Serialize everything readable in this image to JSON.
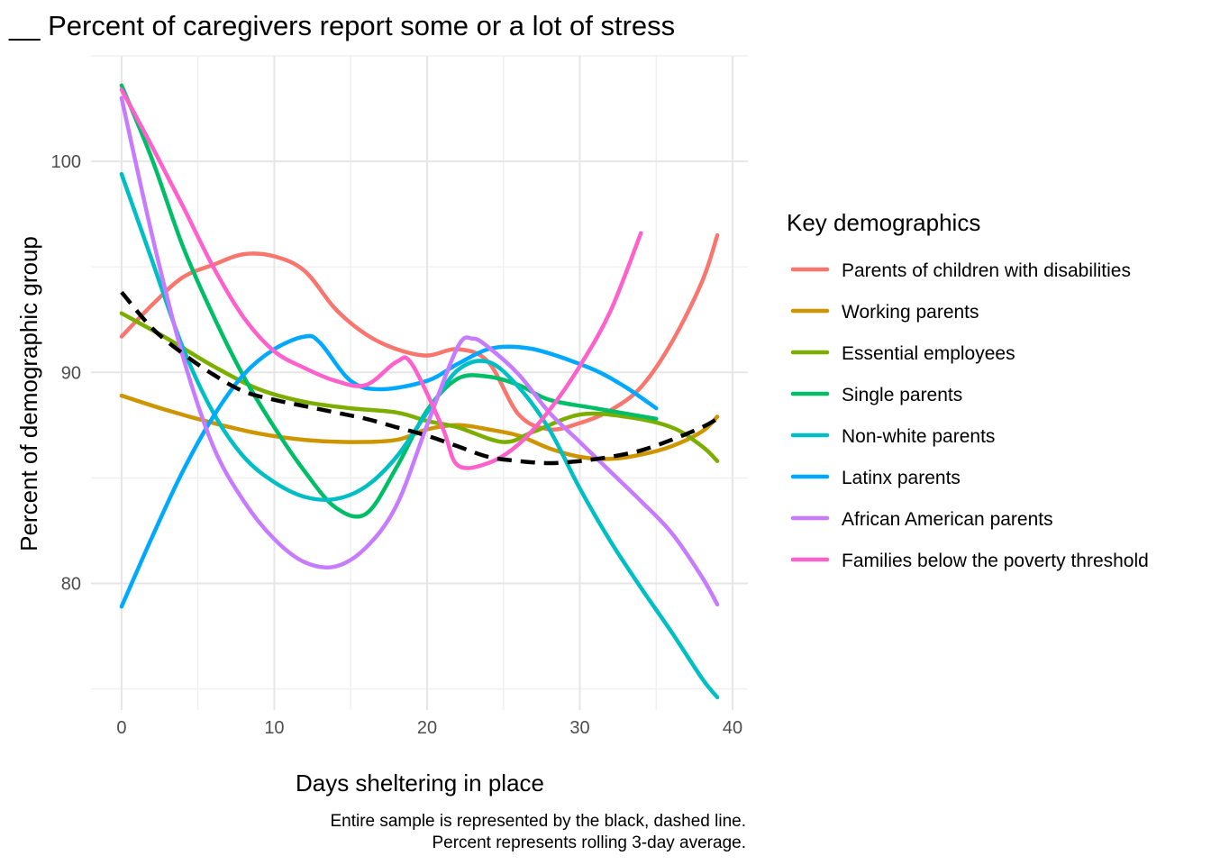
{
  "chart_data": {
    "type": "line",
    "title": "__ Percent of caregivers report some or a lot of stress",
    "xlabel": "Days sheltering in place",
    "ylabel": "Percent of demographic group",
    "xlim": [
      -2,
      41
    ],
    "ylim": [
      74,
      105
    ],
    "xticks": [
      0,
      10,
      20,
      30,
      40
    ],
    "yticks": [
      80,
      90,
      100
    ],
    "grid": true,
    "legend": {
      "title": "Key demographics",
      "placement": "right"
    },
    "caption": [
      "Entire sample is represented by the black, dashed line.",
      "Percent represents rolling 3-day average."
    ],
    "series": [
      {
        "name": "Parents of children with disabilities",
        "color": "#f8766d",
        "points": [
          [
            0,
            91.7
          ],
          [
            2,
            93.2
          ],
          [
            4,
            94.5
          ],
          [
            6,
            95.1
          ],
          [
            8,
            95.6
          ],
          [
            10,
            95.5
          ],
          [
            12,
            94.8
          ],
          [
            14,
            93.0
          ],
          [
            16,
            91.8
          ],
          [
            18,
            91.1
          ],
          [
            20,
            90.8
          ],
          [
            22,
            91.1
          ],
          [
            24,
            90.5
          ],
          [
            26,
            88.0
          ],
          [
            28,
            87.3
          ],
          [
            30,
            87.6
          ],
          [
            32,
            88.2
          ],
          [
            34,
            89.3
          ],
          [
            36,
            91.4
          ],
          [
            38,
            94.3
          ],
          [
            39,
            96.5
          ]
        ]
      },
      {
        "name": "Working parents",
        "color": "#cd9600",
        "points": [
          [
            0,
            88.9
          ],
          [
            3,
            88.2
          ],
          [
            6,
            87.6
          ],
          [
            9,
            87.1
          ],
          [
            12,
            86.8
          ],
          [
            15,
            86.7
          ],
          [
            18,
            86.8
          ],
          [
            20,
            87.3
          ],
          [
            22,
            87.5
          ],
          [
            24,
            87.3
          ],
          [
            26,
            87.0
          ],
          [
            28,
            86.4
          ],
          [
            30,
            86.0
          ],
          [
            32,
            85.9
          ],
          [
            34,
            86.1
          ],
          [
            36,
            86.5
          ],
          [
            38,
            87.2
          ],
          [
            39,
            87.9
          ]
        ]
      },
      {
        "name": "Essential employees",
        "color": "#7cae00",
        "points": [
          [
            0,
            92.8
          ],
          [
            3,
            91.6
          ],
          [
            6,
            90.3
          ],
          [
            9,
            89.2
          ],
          [
            12,
            88.6
          ],
          [
            15,
            88.3
          ],
          [
            18,
            88.1
          ],
          [
            20,
            87.7
          ],
          [
            22,
            87.4
          ],
          [
            25,
            86.7
          ],
          [
            27,
            87.2
          ],
          [
            30,
            88.0
          ],
          [
            33,
            87.9
          ],
          [
            36,
            87.4
          ],
          [
            38,
            86.5
          ],
          [
            39,
            85.8
          ]
        ]
      },
      {
        "name": "Single parents",
        "color": "#00be67",
        "points": [
          [
            0,
            103.6
          ],
          [
            2,
            100.1
          ],
          [
            4,
            96.0
          ],
          [
            6,
            92.7
          ],
          [
            8,
            89.8
          ],
          [
            10,
            87.4
          ],
          [
            12,
            85.3
          ],
          [
            14,
            83.6
          ],
          [
            16,
            83.3
          ],
          [
            18,
            85.5
          ],
          [
            20,
            88.2
          ],
          [
            22,
            89.7
          ],
          [
            24,
            89.8
          ],
          [
            26,
            89.4
          ],
          [
            28,
            88.7
          ],
          [
            31,
            88.3
          ],
          [
            35,
            87.8
          ]
        ]
      },
      {
        "name": "Non-white parents",
        "color": "#00bfc4",
        "points": [
          [
            0,
            99.4
          ],
          [
            2,
            95.3
          ],
          [
            4,
            91.2
          ],
          [
            6,
            88.1
          ],
          [
            8,
            86.0
          ],
          [
            10,
            84.8
          ],
          [
            12,
            84.1
          ],
          [
            14,
            84.0
          ],
          [
            16,
            84.6
          ],
          [
            18,
            86.0
          ],
          [
            20,
            88.1
          ],
          [
            22,
            90.1
          ],
          [
            24,
            90.5
          ],
          [
            26,
            89.3
          ],
          [
            28,
            87.3
          ],
          [
            30,
            84.5
          ],
          [
            32,
            82.0
          ],
          [
            34,
            79.8
          ],
          [
            36,
            77.7
          ],
          [
            38,
            75.5
          ],
          [
            39,
            74.6
          ]
        ]
      },
      {
        "name": "Latinx parents",
        "color": "#00a9ff",
        "points": [
          [
            0,
            78.9
          ],
          [
            2,
            82.2
          ],
          [
            4,
            85.3
          ],
          [
            6,
            87.9
          ],
          [
            8,
            89.9
          ],
          [
            10,
            91.1
          ],
          [
            12,
            91.7
          ],
          [
            13,
            91.4
          ],
          [
            15,
            89.6
          ],
          [
            17,
            89.2
          ],
          [
            20,
            89.6
          ],
          [
            22,
            90.4
          ],
          [
            24,
            91.1
          ],
          [
            26,
            91.2
          ],
          [
            28,
            90.9
          ],
          [
            31,
            90.1
          ],
          [
            33,
            89.3
          ],
          [
            35,
            88.3
          ]
        ]
      },
      {
        "name": "African American parents",
        "color": "#c77cff",
        "points": [
          [
            0,
            103.0
          ],
          [
            2,
            96.5
          ],
          [
            4,
            90.8
          ],
          [
            6,
            86.5
          ],
          [
            8,
            83.9
          ],
          [
            10,
            82.1
          ],
          [
            12,
            81.0
          ],
          [
            14,
            80.8
          ],
          [
            16,
            81.7
          ],
          [
            18,
            83.7
          ],
          [
            20,
            87.5
          ],
          [
            22,
            91.2
          ],
          [
            23,
            91.6
          ],
          [
            24,
            91.2
          ],
          [
            26,
            89.9
          ],
          [
            28,
            88.1
          ],
          [
            30,
            86.7
          ],
          [
            32,
            85.3
          ],
          [
            34,
            83.9
          ],
          [
            36,
            82.4
          ],
          [
            38,
            80.3
          ],
          [
            39,
            79.0
          ]
        ]
      },
      {
        "name": "Families below the poverty threshold",
        "color": "#ff61cc",
        "points": [
          [
            0,
            103.4
          ],
          [
            2,
            100.7
          ],
          [
            4,
            97.9
          ],
          [
            6,
            95.0
          ],
          [
            8,
            92.6
          ],
          [
            10,
            91.0
          ],
          [
            12,
            90.2
          ],
          [
            14,
            89.6
          ],
          [
            16,
            89.4
          ],
          [
            18,
            90.5
          ],
          [
            19,
            90.4
          ],
          [
            21,
            87.4
          ],
          [
            22,
            85.6
          ],
          [
            24,
            85.7
          ],
          [
            26,
            86.6
          ],
          [
            28,
            88.2
          ],
          [
            30,
            90.3
          ],
          [
            32,
            92.9
          ],
          [
            34,
            96.6
          ]
        ]
      }
    ],
    "overall": {
      "color": "#000000",
      "points": [
        [
          0,
          93.8
        ],
        [
          2,
          92.1
        ],
        [
          4,
          90.9
        ],
        [
          6,
          89.9
        ],
        [
          8,
          89.1
        ],
        [
          10,
          88.7
        ],
        [
          12,
          88.4
        ],
        [
          14,
          88.1
        ],
        [
          16,
          87.8
        ],
        [
          18,
          87.4
        ],
        [
          20,
          87.0
        ],
        [
          22,
          86.5
        ],
        [
          24,
          86.0
        ],
        [
          26,
          85.8
        ],
        [
          28,
          85.7
        ],
        [
          30,
          85.8
        ],
        [
          32,
          86.0
        ],
        [
          34,
          86.3
        ],
        [
          36,
          86.8
        ],
        [
          38,
          87.4
        ],
        [
          39,
          87.8
        ]
      ]
    }
  }
}
